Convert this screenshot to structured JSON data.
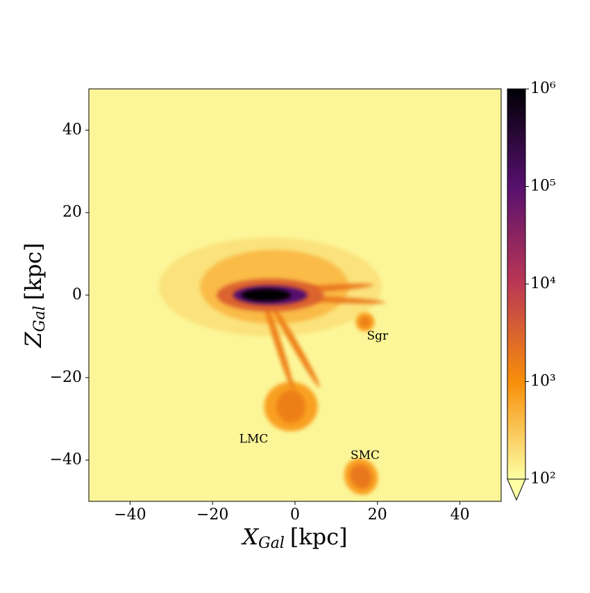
{
  "chart_data": {
    "type": "hist2d",
    "xlabel": {
      "symbol": "X",
      "subscript": "Gal",
      "unit": "[kpc]"
    },
    "ylabel": {
      "symbol": "Z",
      "subscript": "Gal",
      "unit": "[kpc]"
    },
    "xlim": [
      -50,
      50
    ],
    "ylim": [
      -50,
      50
    ],
    "xticks": [
      {
        "value": -40,
        "label": "−40"
      },
      {
        "value": -20,
        "label": "−20"
      },
      0,
      20,
      40
    ],
    "yticks": [
      {
        "value": -40,
        "label": "−40"
      },
      {
        "value": -20,
        "label": "−20"
      },
      0,
      20,
      40
    ],
    "clim": [
      100,
      1000000
    ],
    "log_color": true,
    "cticks": [
      {
        "value": 100,
        "label": "10²"
      },
      {
        "value": 1000,
        "label": "10³"
      },
      {
        "value": 10000,
        "label": "10⁴"
      },
      {
        "value": 100000,
        "label": "10⁵"
      },
      {
        "value": 1000000,
        "label": "10⁶"
      }
    ],
    "cmap": [
      "#000004",
      "#57106e",
      "#bc3754",
      "#f98e09",
      "#fcffa4"
    ],
    "extend": "min",
    "background": 120,
    "features": [
      {
        "x": -6,
        "y": 2,
        "rx": 27,
        "ry": 12,
        "angle": 0,
        "value": 180
      },
      {
        "x": -5,
        "y": 2,
        "rx": 18,
        "ry": 9,
        "angle": 0,
        "value": 400
      },
      {
        "x": -1,
        "y": -27,
        "rx": 6.5,
        "ry": 6,
        "angle": 0,
        "value": 700
      },
      {
        "x": 16,
        "y": -44,
        "rx": 4,
        "ry": 4.5,
        "angle": 25,
        "value": 700
      },
      {
        "x": 17,
        "y": -6.5,
        "rx": 2.3,
        "ry": 2.3,
        "angle": 0,
        "value": 700
      },
      {
        "x": -4,
        "y": -12,
        "rx": 12,
        "ry": 0.8,
        "angle": -72,
        "value": 1500
      },
      {
        "x": 0,
        "y": -12,
        "rx": 12,
        "ry": 0.8,
        "angle": -60,
        "value": 1500
      },
      {
        "x": 5,
        "y": 1.5,
        "rx": 14,
        "ry": 0.8,
        "angle": 4,
        "value": 1800
      },
      {
        "x": 7,
        "y": -1,
        "rx": 15,
        "ry": 0.7,
        "angle": -3,
        "value": 1800
      },
      {
        "x": -1,
        "y": -27,
        "rx": 3.5,
        "ry": 4,
        "angle": 0,
        "value": 1500
      },
      {
        "x": 16,
        "y": -44,
        "rx": 2.5,
        "ry": 3,
        "angle": 25,
        "value": 1800
      },
      {
        "x": 17,
        "y": -6.5,
        "rx": 1.3,
        "ry": 1.3,
        "angle": 0,
        "value": 1500
      },
      {
        "x": -6,
        "y": 0,
        "rx": 13,
        "ry": 4,
        "angle": 0,
        "value": 3000
      },
      {
        "x": -6,
        "y": 0,
        "rx": 9,
        "ry": 2.3,
        "angle": 0,
        "value": 100000
      },
      {
        "x": -7,
        "y": 0,
        "rx": 6,
        "ry": 1.5,
        "angle": 0,
        "value": 1000000
      }
    ],
    "annotations": [
      {
        "text": "Sgr",
        "x": 20,
        "y": -10
      },
      {
        "text": "LMC",
        "x": -10,
        "y": -35
      },
      {
        "text": "SMC",
        "x": 17,
        "y": -39
      }
    ]
  }
}
